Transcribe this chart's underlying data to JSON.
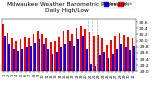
{
  "title": "Milwaukee Weather Barometric Pressure\nDaily High/Low",
  "title_fontsize": 4.2,
  "ylabel_fontsize": 3.2,
  "xlabel_fontsize": 2.5,
  "ylim": [
    29.0,
    30.7
  ],
  "yticks": [
    29.0,
    29.2,
    29.4,
    29.6,
    29.8,
    30.0,
    30.2,
    30.4,
    30.6
  ],
  "ytick_labels": [
    "29.0",
    "29.2",
    "29.4",
    "29.6",
    "29.8",
    "30.0",
    "30.2",
    "30.4",
    "30.6"
  ],
  "legend_labels": [
    "High",
    "Low"
  ],
  "high_color": "#ff0000",
  "low_color": "#0000ff",
  "background_color": "#ffffff",
  "dashed_line_color": "#aaaaaa",
  "dashed_lines": [
    19,
    20,
    21
  ],
  "categories": [
    "1",
    "2",
    "3",
    "4",
    "5",
    "6",
    "7",
    "8",
    "9",
    "10",
    "11",
    "12",
    "13",
    "14",
    "15",
    "16",
    "17",
    "18",
    "19",
    "20",
    "21",
    "22",
    "23",
    "24",
    "25",
    "26",
    "27",
    "28",
    "29",
    "30",
    "31"
  ],
  "high_values": [
    30.55,
    30.25,
    30.1,
    30.0,
    30.05,
    30.12,
    30.1,
    30.22,
    30.32,
    30.22,
    30.1,
    29.95,
    30.0,
    30.12,
    30.3,
    30.35,
    30.22,
    30.42,
    30.48,
    30.38,
    30.28,
    30.15,
    30.18,
    30.08,
    29.85,
    30.02,
    30.14,
    30.25,
    30.18,
    30.12,
    30.08
  ],
  "low_values": [
    30.15,
    29.9,
    29.72,
    29.65,
    29.72,
    29.78,
    29.82,
    29.92,
    30.05,
    29.88,
    29.72,
    29.58,
    29.62,
    29.78,
    29.88,
    29.98,
    29.82,
    30.05,
    30.15,
    29.72,
    29.25,
    29.18,
    29.52,
    29.62,
    29.42,
    29.58,
    29.72,
    29.88,
    29.78,
    29.68,
    29.82
  ],
  "bar_width": 0.42,
  "figsize": [
    1.6,
    0.87
  ],
  "dpi": 100
}
